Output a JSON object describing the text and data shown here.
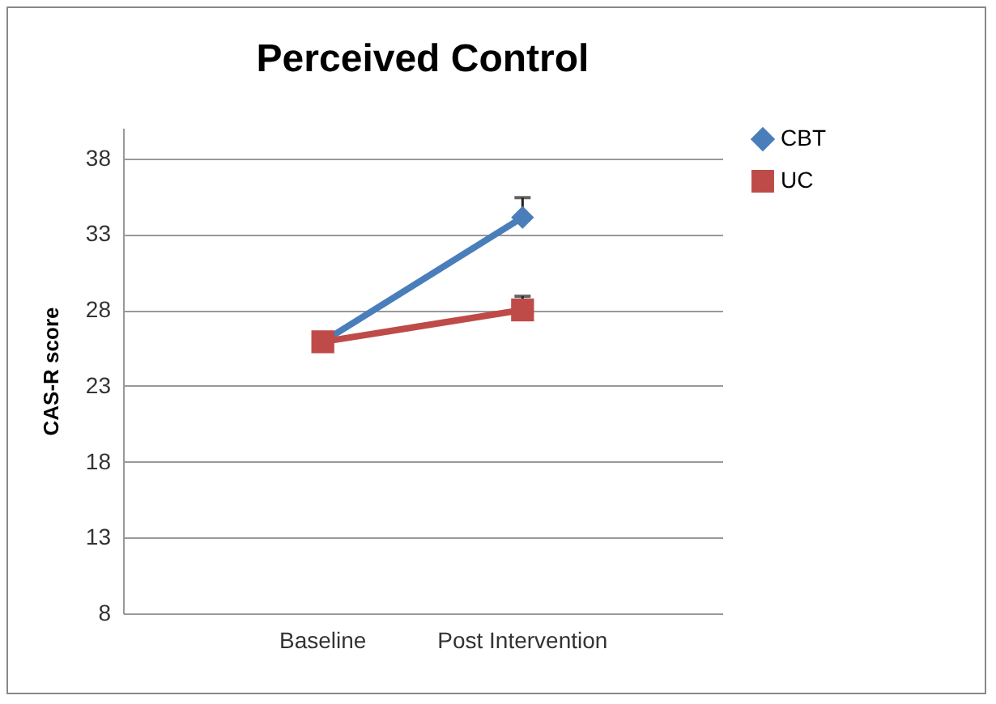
{
  "chart_data": {
    "type": "line",
    "title": "Perceived Control",
    "ylabel": "CAS-R score",
    "categories": [
      "Baseline",
      "Post Intervention"
    ],
    "series": [
      {
        "name": "CBT",
        "color": "#4a7ebb",
        "marker": "diamond",
        "values": [
          25.9,
          34.1
        ],
        "errors": [
          null,
          [
            34.1,
            35.4
          ]
        ]
      },
      {
        "name": "UC",
        "color": "#be4b48",
        "marker": "square",
        "values": [
          25.9,
          28.0
        ],
        "errors": [
          null,
          [
            28.0,
            28.9
          ]
        ]
      }
    ],
    "ylim": [
      8,
      40
    ],
    "yticks": [
      8,
      13,
      18,
      23,
      28,
      33,
      38
    ],
    "grid": "y",
    "legend": "right"
  }
}
